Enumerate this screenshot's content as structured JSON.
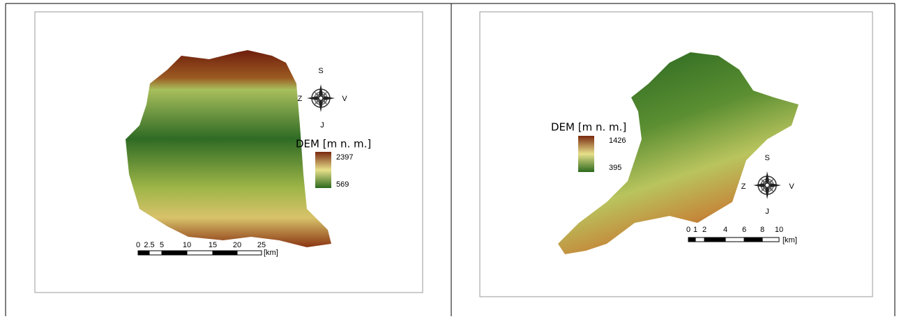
{
  "panels": [
    {
      "legend": {
        "title": "DEM [m n. m.]",
        "max": 2397,
        "min": 569
      },
      "compass": {
        "top": "S",
        "left": "Z",
        "right": "V",
        "bottom": "J"
      },
      "scale_bar": {
        "labels": [
          0,
          2.5,
          5,
          10,
          15,
          20,
          25
        ],
        "unit": "[km]"
      }
    },
    {
      "legend": {
        "title": "DEM [m n. m.]",
        "max": 1426,
        "min": 395
      },
      "compass": {
        "top": "S",
        "left": "Z",
        "right": "V",
        "bottom": "J"
      },
      "scale_bar": {
        "labels": [
          0,
          1,
          2,
          4,
          6,
          8,
          10
        ],
        "unit": "[km]"
      }
    }
  ]
}
